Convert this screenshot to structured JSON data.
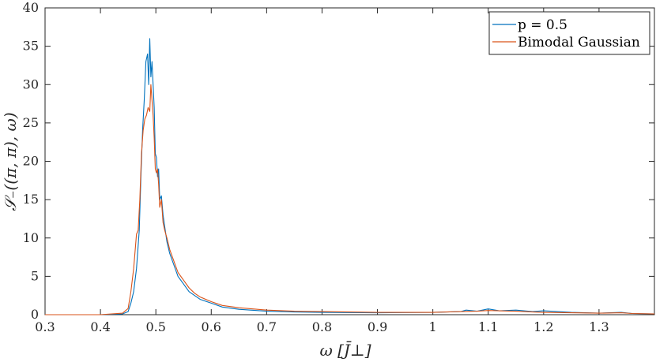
{
  "chart_data": {
    "type": "line",
    "title": "",
    "xlabel": "ω [J̄⊥]",
    "ylabel": "𝒮₋((π, π), ω)",
    "xlim": [
      0.3,
      1.4
    ],
    "ylim": [
      0,
      40
    ],
    "xticks": [
      0.3,
      0.4,
      0.5,
      0.6,
      0.7,
      0.8,
      0.9,
      1,
      1.1,
      1.2,
      1.3
    ],
    "xtick_labels": [
      "0.3",
      "0.4",
      "0.5",
      "0.6",
      "0.7",
      "0.8",
      "0.9",
      "1",
      "1.1",
      "1.2",
      "1.3"
    ],
    "yticks": [
      0,
      5,
      10,
      15,
      20,
      25,
      30,
      35,
      40
    ],
    "ytick_labels": [
      "0",
      "5",
      "10",
      "15",
      "20",
      "25",
      "30",
      "35",
      "40"
    ],
    "grid": false,
    "legend_position": "top-right",
    "legend_entries": [
      "p = 0.5",
      "Bimodal Gaussian"
    ],
    "series": [
      {
        "name": "p = 0.5",
        "color": "#0072BD",
        "x": [
          0.3,
          0.4,
          0.44,
          0.45,
          0.455,
          0.46,
          0.465,
          0.47,
          0.473,
          0.476,
          0.479,
          0.482,
          0.485,
          0.487,
          0.489,
          0.491,
          0.493,
          0.495,
          0.497,
          0.499,
          0.501,
          0.503,
          0.505,
          0.507,
          0.51,
          0.513,
          0.516,
          0.52,
          0.525,
          0.53,
          0.54,
          0.55,
          0.56,
          0.57,
          0.58,
          0.6,
          0.62,
          0.65,
          0.7,
          0.75,
          0.8,
          0.9,
          1.0,
          1.05,
          1.06,
          1.08,
          1.1,
          1.12,
          1.15,
          1.18,
          1.2,
          1.25,
          1.3,
          1.34,
          1.36,
          1.4
        ],
        "y": [
          0,
          0,
          0.1,
          0.4,
          1.5,
          3.0,
          6.0,
          11.0,
          18.0,
          24.0,
          28.0,
          33.0,
          34.0,
          30.0,
          36.0,
          31.0,
          33.0,
          30.0,
          27.0,
          21.0,
          20.5,
          18.0,
          19.0,
          15.0,
          15.5,
          13.0,
          11.5,
          9.5,
          8.0,
          7.0,
          5.0,
          4.0,
          3.0,
          2.5,
          2.0,
          1.5,
          1.0,
          0.7,
          0.45,
          0.35,
          0.3,
          0.25,
          0.3,
          0.4,
          0.6,
          0.45,
          0.75,
          0.5,
          0.6,
          0.4,
          0.5,
          0.3,
          0.2,
          0.3,
          0.15,
          0.1
        ]
      },
      {
        "name": "Bimodal Gaussian",
        "color": "#D95319",
        "x": [
          0.3,
          0.4,
          0.44,
          0.45,
          0.455,
          0.46,
          0.465,
          0.468,
          0.471,
          0.474,
          0.477,
          0.48,
          0.483,
          0.486,
          0.489,
          0.491,
          0.493,
          0.495,
          0.497,
          0.499,
          0.501,
          0.503,
          0.505,
          0.507,
          0.51,
          0.513,
          0.516,
          0.52,
          0.525,
          0.53,
          0.54,
          0.55,
          0.56,
          0.57,
          0.58,
          0.6,
          0.62,
          0.65,
          0.7,
          0.75,
          0.8,
          0.9,
          1.0,
          1.05,
          1.08,
          1.1,
          1.12,
          1.15,
          1.18,
          1.2,
          1.25,
          1.3,
          1.34,
          1.36,
          1.4
        ],
        "y": [
          0,
          0,
          0.2,
          0.8,
          3.0,
          6.0,
          10.5,
          11.0,
          15.0,
          21.0,
          24.0,
          25.5,
          26.0,
          27.0,
          26.5,
          30.0,
          28.0,
          26.0,
          23.0,
          19.0,
          18.5,
          19.0,
          17.0,
          14.0,
          15.0,
          12.0,
          11.0,
          10.0,
          8.5,
          7.5,
          5.5,
          4.5,
          3.5,
          2.8,
          2.3,
          1.7,
          1.2,
          0.9,
          0.6,
          0.45,
          0.4,
          0.3,
          0.3,
          0.4,
          0.45,
          0.55,
          0.5,
          0.45,
          0.35,
          0.3,
          0.25,
          0.2,
          0.25,
          0.15,
          0.1
        ]
      }
    ]
  }
}
